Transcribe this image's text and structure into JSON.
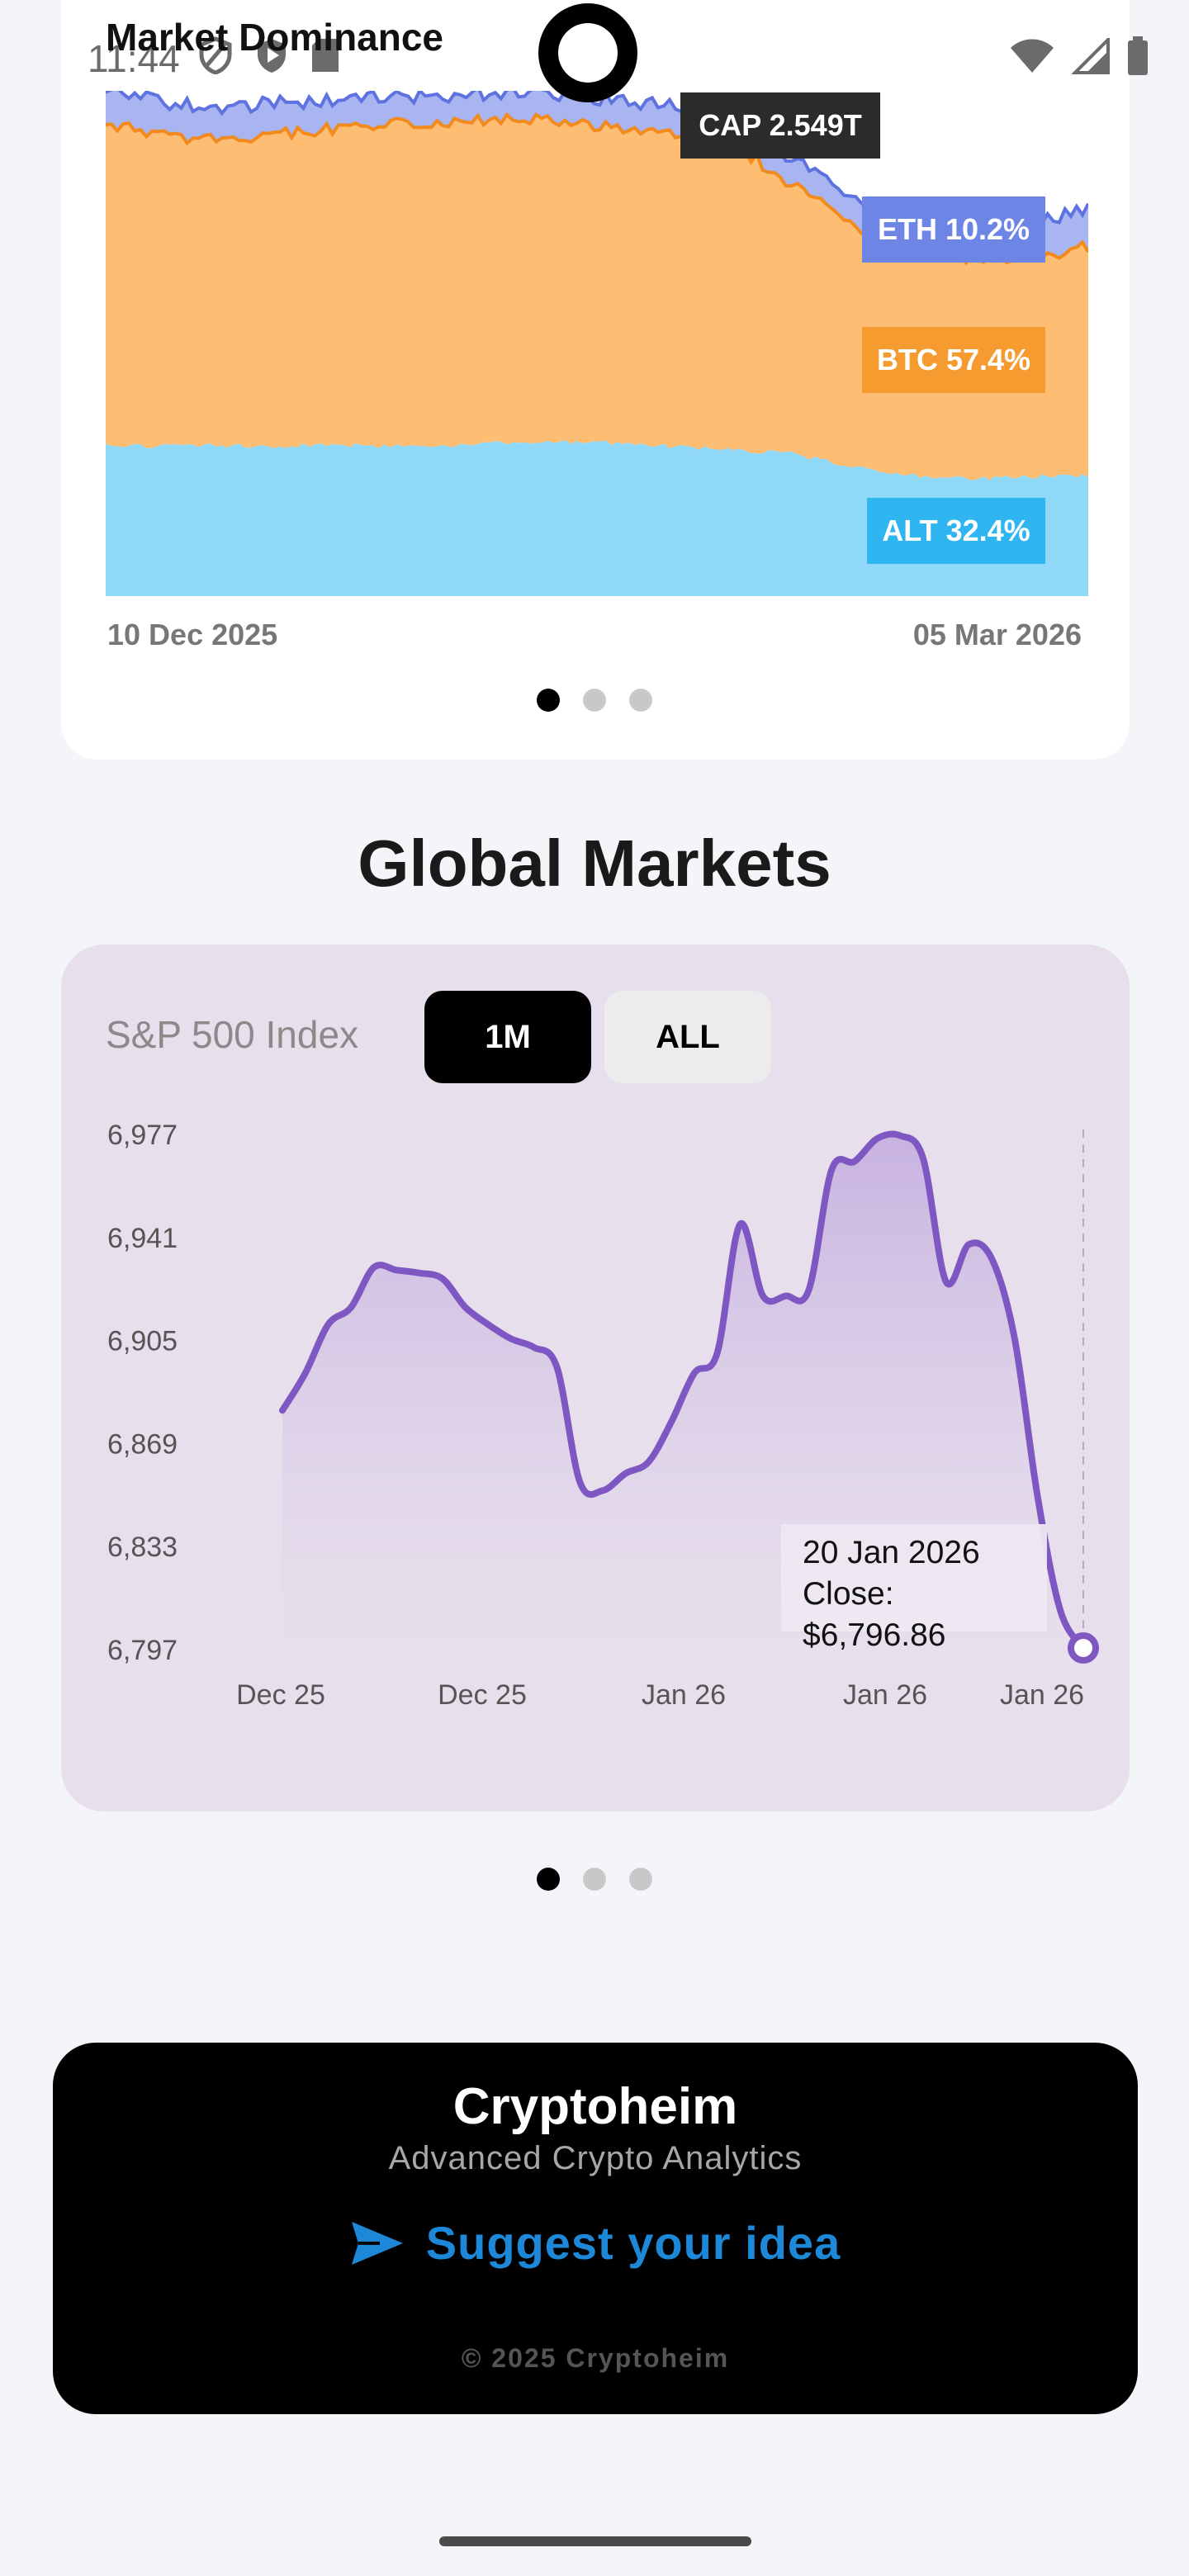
{
  "status_bar": {
    "time": "11:44"
  },
  "dominance": {
    "title": "Market Dominance",
    "date_start": "10 Dec 2025",
    "date_end": "05 Mar 2026",
    "cap_label": "CAP 2.549T",
    "eth_label": "ETH 10.2%",
    "btc_label": "BTC 57.4%",
    "alt_label": "ALT 32.4%",
    "colors": {
      "eth": "#a9b5f0",
      "btc": "#fdbd73",
      "alt": "#90d8f8"
    }
  },
  "global": {
    "title": "Global Markets",
    "index_label": "S&P 500 Index",
    "range_buttons": [
      "1M",
      "ALL"
    ],
    "active_range": "1M",
    "tooltip_date": "20 Jan 2026",
    "tooltip_value": "Close: $6,796.86"
  },
  "chart_data": {
    "type": "area",
    "y_ticks": [
      "6,977",
      "6,941",
      "6,905",
      "6,869",
      "6,833",
      "6,797"
    ],
    "x_ticks": [
      "Dec 25",
      "Dec 25",
      "Jan 26",
      "Jan 26",
      "Jan 26"
    ],
    "ylim": [
      6797,
      6977
    ],
    "values": [
      6880,
      6893,
      6910,
      6916,
      6930,
      6929,
      6928,
      6926,
      6916,
      6910,
      6905,
      6902,
      6895,
      6855,
      6852,
      6858,
      6862,
      6876,
      6893,
      6900,
      6945,
      6920,
      6920,
      6922,
      6964,
      6967,
      6975,
      6976,
      6968,
      6925,
      6938,
      6933,
      6905,
      6850,
      6810,
      6797
    ],
    "line_color": "#7e57c2"
  },
  "footer": {
    "brand": "Cryptoheim",
    "tagline": "Advanced Crypto Analytics",
    "suggest": "Suggest your idea",
    "copyright": "© 2025 Cryptoheim"
  }
}
